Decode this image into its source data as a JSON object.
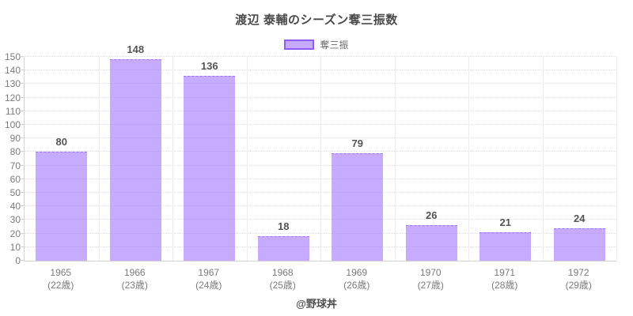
{
  "title": "渡辺 泰輔のシーズン奪三振数",
  "legend": {
    "label": "奪三振"
  },
  "footer": "@野球丼",
  "colors": {
    "bar_fill": "rgba(153,102,255,0.55)",
    "bar_border": "rgba(153,102,255,0.85)",
    "legend_border": "#8f5df5",
    "grid_h": "#e0e0e0",
    "grid_v": "#ededed",
    "axis": "#d2d2d2",
    "tick_text": "#7b7b7b",
    "value_text": "#545454",
    "title_text": "#4a4a4a",
    "footer_text": "#4f4f4f"
  },
  "chart_data": {
    "type": "bar",
    "title": "渡辺 泰輔のシーズン奪三振数",
    "series_name": "奪三振",
    "categories": [
      "1965",
      "1966",
      "1967",
      "1968",
      "1969",
      "1970",
      "1971",
      "1972"
    ],
    "category_sublabels": [
      "(22歳)",
      "(23歳)",
      "(24歳)",
      "(25歳)",
      "(26歳)",
      "(27歳)",
      "(28歳)",
      "(29歳)"
    ],
    "values": [
      80,
      148,
      136,
      18,
      79,
      26,
      21,
      24
    ],
    "ylim": [
      0,
      150
    ],
    "y_tick_step": 10,
    "grid": true,
    "legend_position": "top",
    "value_labels": true
  }
}
